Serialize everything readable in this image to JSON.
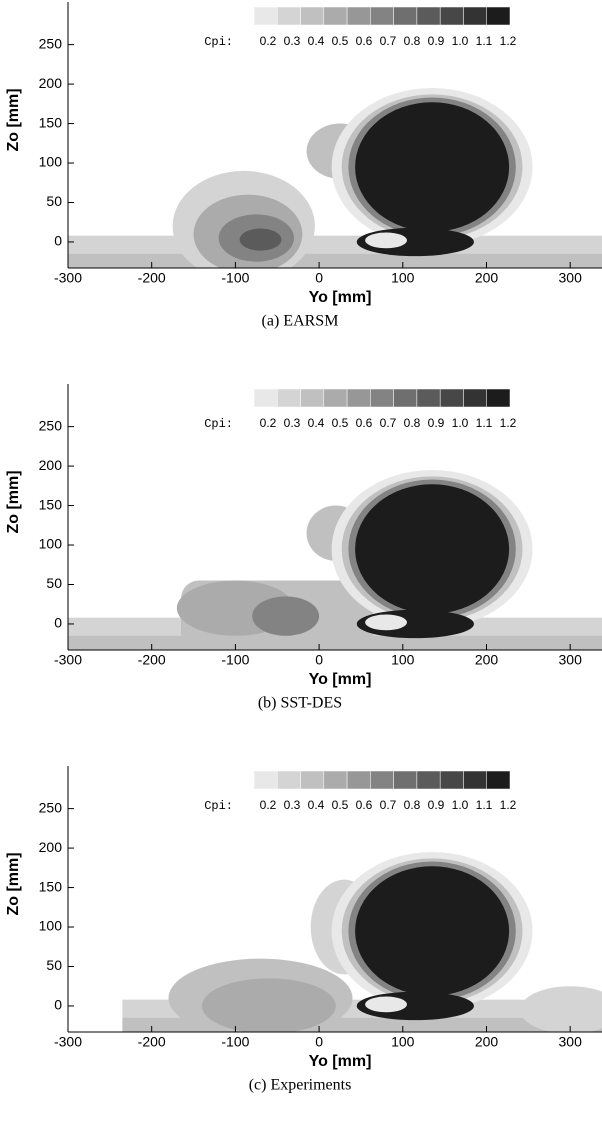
{
  "chart_data": [
    {
      "type": "contour",
      "caption": "(a) EARSM",
      "xlabel": "Yo [mm]",
      "ylabel": "Zo [mm]",
      "xlim": [
        -300,
        338
      ],
      "ylim": [
        -33,
        304
      ],
      "xticks": [
        -300,
        -200,
        -100,
        0,
        100,
        200,
        300
      ],
      "yticks": [
        0,
        50,
        100,
        150,
        200,
        250
      ],
      "colorbar": {
        "label": "Cpi:",
        "levels": [
          0.2,
          0.3,
          0.4,
          0.5,
          0.6,
          0.7,
          0.8,
          0.9,
          {
            "value": 1,
            "label": "1.0"
          },
          1.1,
          1.2
        ],
        "colors": [
          "#e8e8e8",
          "#d4d4d4",
          "#c0c0c0",
          "#ababab",
          "#979797",
          "#838383",
          "#6f6f6f",
          "#5b5b5b",
          "#474747",
          "#333333",
          "#1c1c1c"
        ]
      }
    },
    {
      "type": "contour",
      "caption": "(b) SST-DES",
      "xlabel": "Yo [mm]",
      "ylabel": "Zo [mm]",
      "xlim": [
        -300,
        338
      ],
      "ylim": [
        -33,
        304
      ],
      "xticks": [
        -300,
        -200,
        -100,
        0,
        100,
        200,
        300
      ],
      "yticks": [
        0,
        50,
        100,
        150,
        200,
        250
      ],
      "colorbar": {
        "label": "Cpi:",
        "levels": [
          0.2,
          0.3,
          0.4,
          0.5,
          0.6,
          0.7,
          0.8,
          0.9,
          {
            "value": 1,
            "label": "1.0"
          },
          1.1,
          1.2
        ],
        "colors": [
          "#e8e8e8",
          "#d4d4d4",
          "#c0c0c0",
          "#ababab",
          "#979797",
          "#838383",
          "#6f6f6f",
          "#5b5b5b",
          "#474747",
          "#333333",
          "#1c1c1c"
        ]
      }
    },
    {
      "type": "contour",
      "caption": "(c) Experiments",
      "xlabel": "Yo [mm]",
      "ylabel": "Zo [mm]",
      "xlim": [
        -300,
        338
      ],
      "ylim": [
        -33,
        304
      ],
      "xticks": [
        -300,
        -200,
        -100,
        0,
        100,
        200,
        300
      ],
      "yticks": [
        0,
        50,
        100,
        150,
        200,
        250
      ],
      "colorbar": {
        "label": "Cpi:",
        "levels": [
          0.2,
          0.3,
          0.4,
          0.5,
          0.6,
          0.7,
          0.8,
          0.9,
          {
            "value": 1,
            "label": "1.0"
          },
          1.1,
          1.2
        ],
        "colors": [
          "#e8e8e8",
          "#d4d4d4",
          "#c0c0c0",
          "#ababab",
          "#979797",
          "#838383",
          "#6f6f6f",
          "#5b5b5b",
          "#474747",
          "#333333",
          "#1c1c1c"
        ]
      }
    }
  ]
}
